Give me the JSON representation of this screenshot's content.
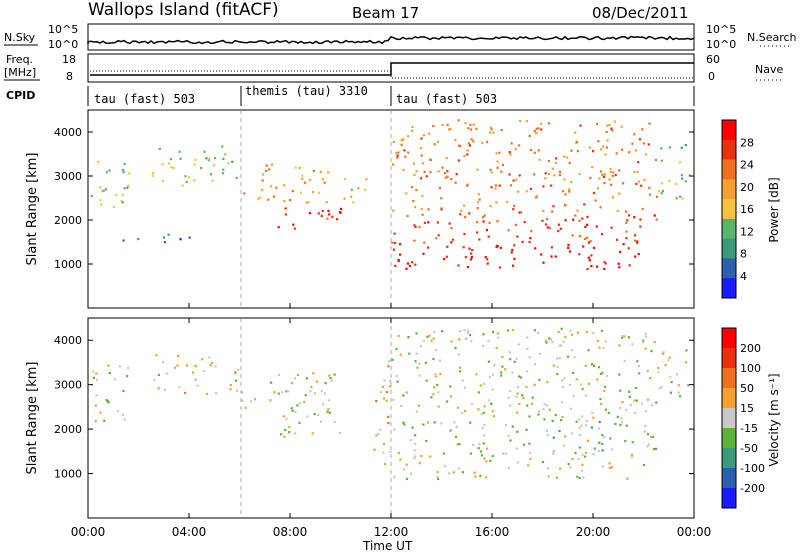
{
  "header": {
    "title": "Wallops Island (fitACF)",
    "beam": "Beam 17",
    "date": "08/Dec/2011"
  },
  "top_panels": {
    "nsky_label": "N.Sky",
    "nsky_ticks": [
      "10^5",
      "10^0"
    ],
    "nsearch_label": "N.Search",
    "freq_label_1": "Freq.",
    "freq_label_2": "[MHz]",
    "freq_ticks": [
      "18",
      "8"
    ],
    "nave_label": "Nave",
    "nave_ticks": [
      "60",
      "0"
    ],
    "cpid_label": "CPID",
    "cpid_segments": [
      {
        "label": "tau (fast) 503",
        "start_hour": 0
      },
      {
        "label": "themis (tau) 3310",
        "start_hour": 6
      },
      {
        "label": "tau (fast) 503",
        "start_hour": 12
      }
    ]
  },
  "colors": {
    "power_scale": [
      "#1a1aff",
      "#2d5fb0",
      "#3a9a7a",
      "#5ab46a",
      "#f5c242",
      "#f5a030",
      "#f07020",
      "#e83010",
      "#ff0000"
    ],
    "velocity_scale": [
      "#1a1aff",
      "#2d5fb0",
      "#3a9a7a",
      "#5ab43a",
      "#c8c8c8",
      "#f5a030",
      "#f07020",
      "#e83010",
      "#ff0000"
    ]
  },
  "chart_data": [
    {
      "type": "heatmap",
      "name": "power",
      "ylabel": "Slant Range [km]",
      "ylim": [
        0,
        4500
      ],
      "yticks": [
        "1000",
        "2000",
        "3000",
        "4000"
      ],
      "xlim_hours": [
        0,
        24
      ],
      "colorbar_label": "Power [dB]",
      "colorbar_ticks": [
        "28",
        "24",
        "20",
        "16",
        "12",
        "8",
        "4"
      ],
      "clim": [
        0,
        32
      ],
      "regions": [
        {
          "t": [
            0.1,
            1.6
          ],
          "r": [
            2200,
            3500
          ],
          "v": 14
        },
        {
          "t": [
            2.5,
            6.0
          ],
          "r": [
            2800,
            3700
          ],
          "v": 14
        },
        {
          "t": [
            6.0,
            9.5
          ],
          "r": [
            2400,
            3300
          ],
          "v": 20
        },
        {
          "t": [
            7.5,
            10.0
          ],
          "r": [
            1800,
            2400
          ],
          "v": 28
        },
        {
          "t": [
            10.0,
            11.0
          ],
          "r": [
            2400,
            3100
          ],
          "v": 16
        },
        {
          "t": [
            12.0,
            22.0
          ],
          "r": [
            900,
            1500
          ],
          "v": 30
        },
        {
          "t": [
            12.0,
            22.5
          ],
          "r": [
            1500,
            2200
          ],
          "v": 26
        },
        {
          "t": [
            12.0,
            22.5
          ],
          "r": [
            2200,
            4300
          ],
          "v": 22
        },
        {
          "t": [
            22.5,
            23.8
          ],
          "r": [
            2500,
            3800
          ],
          "v": 14
        },
        {
          "t": [
            1.0,
            4.0
          ],
          "r": [
            1500,
            1700
          ],
          "v": 6
        }
      ]
    },
    {
      "type": "heatmap",
      "name": "velocity",
      "ylabel": "Slant Range [km]",
      "ylim": [
        0,
        4500
      ],
      "yticks": [
        "1000",
        "2000",
        "3000",
        "4000"
      ],
      "xlim_hours": [
        0,
        24
      ],
      "colorbar_label": "Velocity [m s⁻¹]",
      "colorbar_ticks": [
        "200",
        "100",
        "50",
        "15",
        "-15",
        "-50",
        "-100",
        "-200"
      ],
      "clim": [
        -250,
        250
      ],
      "regions": [
        {
          "t": [
            0.1,
            1.6
          ],
          "r": [
            2200,
            3500
          ],
          "v": 0
        },
        {
          "t": [
            2.5,
            6.0
          ],
          "r": [
            2800,
            3700
          ],
          "v": 30
        },
        {
          "t": [
            6.0,
            10.0
          ],
          "r": [
            2400,
            3300
          ],
          "v": 0
        },
        {
          "t": [
            7.5,
            10.0
          ],
          "r": [
            1800,
            2400
          ],
          "v": 0
        },
        {
          "t": [
            11.3,
            12.0
          ],
          "r": [
            1200,
            3900
          ],
          "v": 60
        },
        {
          "t": [
            12.0,
            22.0
          ],
          "r": [
            900,
            1500
          ],
          "v": 0
        },
        {
          "t": [
            12.0,
            22.5
          ],
          "r": [
            1500,
            2200
          ],
          "v": -30
        },
        {
          "t": [
            12.0,
            22.5
          ],
          "r": [
            2200,
            4300
          ],
          "v": 0
        },
        {
          "t": [
            22.5,
            23.8
          ],
          "r": [
            2500,
            3800
          ],
          "v": 0
        }
      ]
    }
  ],
  "x_axis": {
    "ticks": [
      "00:00",
      "04:00",
      "08:00",
      "12:00",
      "16:00",
      "20:00",
      "00:00"
    ],
    "label": "Time UT"
  }
}
